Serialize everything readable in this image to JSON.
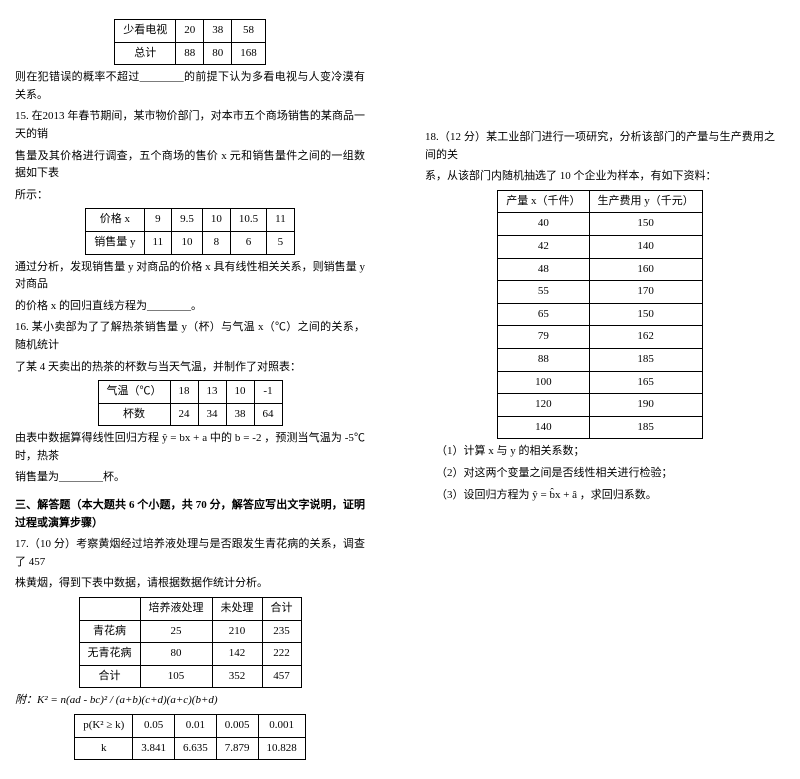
{
  "leftCol": {
    "table1": {
      "row1": [
        "少看电视",
        "20",
        "38",
        "58"
      ],
      "row2": [
        "总计",
        "88",
        "80",
        "168"
      ]
    },
    "p1": "则在犯错误的概率不超过________的前提下认为多看电视与人变冷漠有关系。",
    "p15a": "15. 在2013 年春节期间，某市物价部门，对本市五个商场销售的某商品一天的销",
    "p15b": "售量及其价格进行调查，五个商场的售价 x 元和销售量件之间的一组数据如下表",
    "p15c": "所示：",
    "table2": {
      "header": [
        "价格 x",
        "9",
        "9.5",
        "10",
        "10.5",
        "11"
      ],
      "row": [
        "销售量 y",
        "11",
        "10",
        "8",
        "6",
        "5"
      ]
    },
    "p15d": "通过分析，发现销售量 y 对商品的价格 x 具有线性相关关系，则销售量 y 对商品",
    "p15e": "的价格 x 的回归直线方程为________。",
    "p16a": "16. 某小卖部为了了解热茶销售量 y（杯）与气温 x（℃）之间的关系，随机统计",
    "p16b": "了某 4 天卖出的热茶的杯数与当天气温，并制作了对照表：",
    "table3": {
      "header": [
        "气温（℃）",
        "18",
        "13",
        "10",
        "-1"
      ],
      "row": [
        "杯数",
        "24",
        "34",
        "38",
        "64"
      ]
    },
    "p16c": "由表中数据算得线性回归方程 ŷ = bx + a 中的 b = -2 ，预测当气温为 -5℃ 时，热茶",
    "p16d": "销售量为________杯。",
    "section3title": "三、解答题（本大题共 6 个小题，共 70 分，解答应写出文字说明，证明过程或演算步骤）",
    "p17a": "17.（10 分）考察黄烟经过培养液处理与是否跟发生青花病的关系，调查了 457",
    "p17b": "株黄烟，得到下表中数据，请根据数据作统计分析。",
    "table4": {
      "header": [
        "",
        "培养液处理",
        "未处理",
        "合计"
      ],
      "r1": [
        "青花病",
        "25",
        "210",
        "235"
      ],
      "r2": [
        "无青花病",
        "80",
        "142",
        "222"
      ],
      "r3": [
        "合计",
        "105",
        "352",
        "457"
      ]
    },
    "formulaText": "附：K² = n(ad - bc)² / (a+b)(c+d)(a+c)(b+d)",
    "table5": {
      "header": [
        "p(K² ≥ k)",
        "0.05",
        "0.01",
        "0.005",
        "0.001"
      ],
      "row": [
        "k",
        "3.841",
        "6.635",
        "7.879",
        "10.828"
      ]
    }
  },
  "rightCol": {
    "p18a": "18.（12 分）某工业部门进行一项研究，分析该部门的产量与生产费用之间的关",
    "p18b": "系，从该部门内随机抽选了 10 个企业为样本，有如下资料：",
    "table6": {
      "header": [
        "产量 x（千件）",
        "生产费用 y（千元）"
      ],
      "rows": [
        [
          "40",
          "150"
        ],
        [
          "42",
          "140"
        ],
        [
          "48",
          "160"
        ],
        [
          "55",
          "170"
        ],
        [
          "65",
          "150"
        ],
        [
          "79",
          "162"
        ],
        [
          "88",
          "185"
        ],
        [
          "100",
          "165"
        ],
        [
          "120",
          "190"
        ],
        [
          "140",
          "185"
        ]
      ]
    },
    "q1": "（1）计算 x 与 y 的相关系数；",
    "q2": "（2）对这两个变量之间是否线性相关进行检验；",
    "q3": "（3）设回归方程为 ŷ = b̂x + â ，求回归系数。"
  }
}
